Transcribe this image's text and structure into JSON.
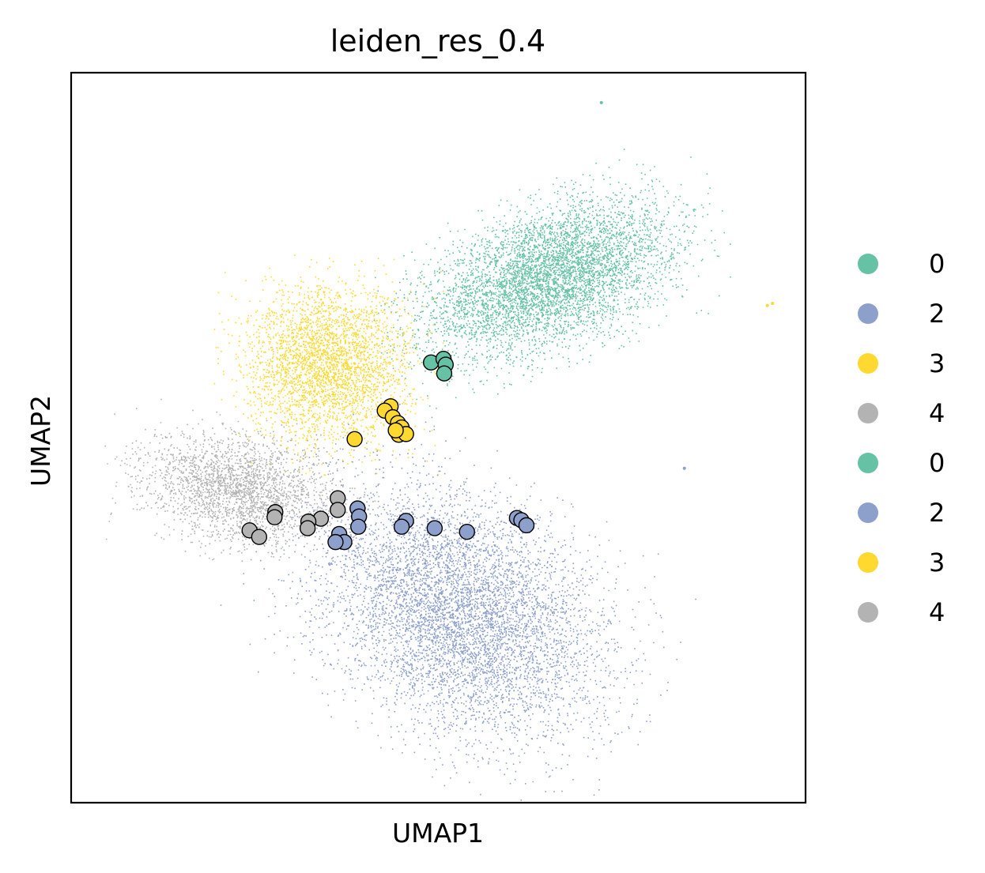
{
  "chart_data": {
    "type": "scatter",
    "title": "leiden_res_0.4",
    "xlabel": "UMAP1",
    "ylabel": "UMAP2",
    "xlim": [
      0,
      10
    ],
    "ylim": [
      0,
      10
    ],
    "grid": false,
    "ticks": false,
    "legend": {
      "placement": "right",
      "entries": [
        {
          "label": "0",
          "color": "#66c2a5"
        },
        {
          "label": "2",
          "color": "#8da0cb"
        },
        {
          "label": "3",
          "color": "#ffd92f"
        },
        {
          "label": "4",
          "color": "#b3b3b3"
        },
        {
          "label": "0",
          "color": "#66c2a5"
        },
        {
          "label": "2",
          "color": "#8da0cb"
        },
        {
          "label": "3",
          "color": "#ffd92f"
        },
        {
          "label": "4",
          "color": "#b3b3b3"
        }
      ]
    },
    "clusters": [
      {
        "label": "0",
        "color": "#66c2a5",
        "center": [
          6.5,
          7.2
        ],
        "spread": [
          1.6,
          0.8
        ],
        "angle_deg": 22,
        "n_points": 5500
      },
      {
        "label": "3",
        "color": "#ffd92f",
        "center": [
          3.5,
          6.0
        ],
        "spread": [
          1.0,
          0.95
        ],
        "angle_deg": 0,
        "n_points": 3200
      },
      {
        "label": "4",
        "color": "#b3b3b3",
        "center": [
          2.3,
          4.3
        ],
        "spread": [
          1.2,
          0.65
        ],
        "angle_deg": -10,
        "n_points": 2600
      },
      {
        "label": "2",
        "color": "#8da0cb",
        "center": [
          5.3,
          2.6
        ],
        "spread": [
          1.9,
          1.35
        ],
        "angle_deg": -32,
        "n_points": 6500
      }
    ],
    "highlighted_points": [
      {
        "label": "0",
        "color": "#66c2a5",
        "x": 4.9,
        "y": 6.03
      },
      {
        "label": "0",
        "color": "#66c2a5",
        "x": 5.07,
        "y": 6.08
      },
      {
        "label": "0",
        "color": "#66c2a5",
        "x": 5.1,
        "y": 6.0
      },
      {
        "label": "0",
        "color": "#66c2a5",
        "x": 5.08,
        "y": 5.88
      },
      {
        "label": "3",
        "color": "#ffd92f",
        "x": 4.35,
        "y": 5.43
      },
      {
        "label": "3",
        "color": "#ffd92f",
        "x": 4.27,
        "y": 5.37
      },
      {
        "label": "3",
        "color": "#ffd92f",
        "x": 4.38,
        "y": 5.28
      },
      {
        "label": "3",
        "color": "#ffd92f",
        "x": 4.45,
        "y": 5.2
      },
      {
        "label": "3",
        "color": "#ffd92f",
        "x": 4.5,
        "y": 5.14
      },
      {
        "label": "3",
        "color": "#ffd92f",
        "x": 4.46,
        "y": 5.04
      },
      {
        "label": "3",
        "color": "#ffd92f",
        "x": 4.56,
        "y": 5.05
      },
      {
        "label": "3",
        "color": "#ffd92f",
        "x": 4.42,
        "y": 5.1
      },
      {
        "label": "3",
        "color": "#ffd92f",
        "x": 3.86,
        "y": 4.98
      },
      {
        "label": "4",
        "color": "#b3b3b3",
        "x": 3.63,
        "y": 4.17
      },
      {
        "label": "4",
        "color": "#b3b3b3",
        "x": 3.63,
        "y": 4.01
      },
      {
        "label": "4",
        "color": "#b3b3b3",
        "x": 2.78,
        "y": 3.98
      },
      {
        "label": "4",
        "color": "#b3b3b3",
        "x": 2.77,
        "y": 3.91
      },
      {
        "label": "4",
        "color": "#b3b3b3",
        "x": 3.4,
        "y": 3.89
      },
      {
        "label": "4",
        "color": "#b3b3b3",
        "x": 3.23,
        "y": 3.85
      },
      {
        "label": "4",
        "color": "#b3b3b3",
        "x": 3.22,
        "y": 3.76
      },
      {
        "label": "4",
        "color": "#b3b3b3",
        "x": 2.43,
        "y": 3.73
      },
      {
        "label": "4",
        "color": "#b3b3b3",
        "x": 2.56,
        "y": 3.64
      },
      {
        "label": "2",
        "color": "#8da0cb",
        "x": 3.9,
        "y": 4.03
      },
      {
        "label": "2",
        "color": "#8da0cb",
        "x": 3.92,
        "y": 3.92
      },
      {
        "label": "2",
        "color": "#8da0cb",
        "x": 3.91,
        "y": 3.78
      },
      {
        "label": "2",
        "color": "#8da0cb",
        "x": 3.65,
        "y": 3.68
      },
      {
        "label": "2",
        "color": "#8da0cb",
        "x": 3.72,
        "y": 3.57
      },
      {
        "label": "2",
        "color": "#8da0cb",
        "x": 3.6,
        "y": 3.57
      },
      {
        "label": "2",
        "color": "#8da0cb",
        "x": 4.56,
        "y": 3.86
      },
      {
        "label": "2",
        "color": "#8da0cb",
        "x": 4.5,
        "y": 3.78
      },
      {
        "label": "2",
        "color": "#8da0cb",
        "x": 4.95,
        "y": 3.76
      },
      {
        "label": "2",
        "color": "#8da0cb",
        "x": 5.39,
        "y": 3.71
      },
      {
        "label": "2",
        "color": "#8da0cb",
        "x": 6.07,
        "y": 3.9
      },
      {
        "label": "2",
        "color": "#8da0cb",
        "x": 6.13,
        "y": 3.87
      },
      {
        "label": "2",
        "color": "#8da0cb",
        "x": 6.2,
        "y": 3.8
      }
    ],
    "outlier_points": [
      {
        "color": "#66c2a5",
        "x": 7.22,
        "y": 9.59
      },
      {
        "color": "#ffd92f",
        "x": 9.48,
        "y": 6.81
      },
      {
        "color": "#ffd92f",
        "x": 9.55,
        "y": 6.84
      },
      {
        "color": "#8da0cb",
        "x": 8.35,
        "y": 4.58
      }
    ]
  }
}
